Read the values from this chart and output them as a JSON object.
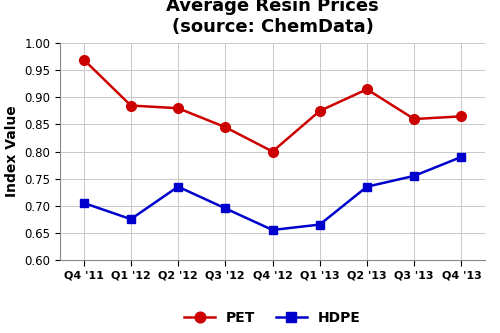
{
  "title": "Average Resin Prices\n(source: ChemData)",
  "ylabel": "Index Value",
  "categories": [
    "Q4 '11",
    "Q1 '12",
    "Q2 '12",
    "Q3 '12",
    "Q4 '12",
    "Q1 '13",
    "Q2 '13",
    "Q3 '13",
    "Q4 '13"
  ],
  "PET": [
    0.97,
    0.885,
    0.88,
    0.845,
    0.8,
    0.875,
    0.915,
    0.86,
    0.865
  ],
  "HDPE": [
    0.705,
    0.675,
    0.735,
    0.695,
    0.655,
    0.665,
    0.735,
    0.755,
    0.79
  ],
  "PET_color": "#cc0000",
  "HDPE_color": "#0000cc",
  "ylim": [
    0.6,
    1.0
  ],
  "yticks": [
    0.6,
    0.65,
    0.7,
    0.75,
    0.8,
    0.85,
    0.9,
    0.95,
    1.0
  ],
  "bg_color": "#ffffff",
  "plot_bg_color": "#ffffff",
  "grid_color": "#c8c8c8",
  "title_fontsize": 13,
  "axis_label_fontsize": 10,
  "tick_fontsize": 8.5,
  "xtick_fontsize": 8,
  "legend_fontsize": 10,
  "marker_size": 7,
  "line_width": 1.8
}
